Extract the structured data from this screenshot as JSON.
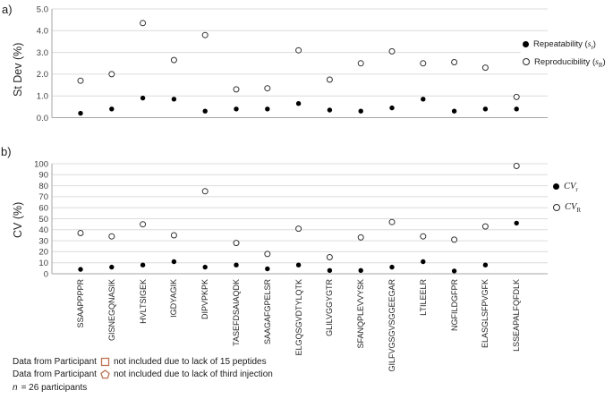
{
  "figure": {
    "panel_a_label": "a)",
    "panel_b_label": "b)"
  },
  "chart_data": [
    {
      "type": "scatter",
      "panel": "a",
      "ylabel": "St Dev (%)",
      "ylim": [
        0,
        5
      ],
      "yticks": [
        0,
        1,
        2,
        3,
        4,
        5
      ],
      "ytick_labels": [
        "0.0",
        "1.0",
        "2.0",
        "3.0",
        "4.0",
        "5.0"
      ],
      "grid": true,
      "legend_position": "right",
      "categories": [
        "SSAAPPPPR",
        "GISNEGQNASIK",
        "HVLTSIGEK",
        "IGDYAGIK",
        "DIPVPKPK",
        "TASEFDSAIAQDK",
        "SAAGAFGPELSR",
        "ELGQSGVDTYLQTK",
        "GLILVGGYGTR",
        "SFANQPLEVVYSK",
        "GILFVGSGVSGGEEGAR",
        "LTILEELR",
        "NGFILDGFPR",
        "ELASGLSFPVGFK",
        "LSSEAPALFQFDLK"
      ],
      "series": [
        {
          "name": "Repeatability (sr)",
          "marker": "filled",
          "values": [
            0.2,
            0.4,
            0.9,
            0.85,
            0.3,
            0.4,
            0.4,
            0.65,
            0.35,
            0.3,
            0.45,
            0.85,
            0.3,
            0.4,
            0.4
          ]
        },
        {
          "name": "Reproducibility (sR)",
          "marker": "open",
          "values": [
            1.7,
            2.0,
            4.35,
            2.65,
            3.8,
            1.3,
            1.35,
            3.1,
            1.75,
            2.5,
            3.05,
            2.5,
            2.55,
            2.3,
            0.95
          ]
        }
      ],
      "legend": [
        {
          "marker": "filled",
          "prefix": "Repeatability (",
          "symbol": "s",
          "subscript": "r",
          "suffix": ")"
        },
        {
          "marker": "open",
          "prefix": "Reproducibility (",
          "symbol": "s",
          "subscript": "R",
          "suffix": ")"
        }
      ]
    },
    {
      "type": "scatter",
      "panel": "b",
      "ylabel": "CV (%)",
      "ylim": [
        0,
        100
      ],
      "yticks": [
        0,
        10,
        20,
        30,
        40,
        50,
        60,
        70,
        80,
        90,
        100
      ],
      "ytick_labels": [
        "0",
        "10",
        "20",
        "30",
        "40",
        "50",
        "60",
        "70",
        "80",
        "90",
        "100"
      ],
      "grid": true,
      "legend_position": "right",
      "categories": [
        "SSAAPPPPR",
        "GISNEGQNASIK",
        "HVLTSIGEK",
        "IGDYAGIK",
        "DIPVPKPK",
        "TASEFDSAIAQDK",
        "SAAGAFGPELSR",
        "ELGQSGVDTYLQTK",
        "GLILVGGYGTR",
        "SFANQPLEVVYSK",
        "GILFVGSGVSGGEEGAR",
        "LTILEELR",
        "NGFILDGFPR",
        "ELASGLSFPVGFK",
        "LSSEAPALFQFDLK"
      ],
      "series": [
        {
          "name": "CVr",
          "marker": "filled",
          "values": [
            4,
            6,
            8,
            11,
            6,
            8,
            4.5,
            8,
            3,
            3,
            6,
            11,
            2.5,
            8,
            46
          ]
        },
        {
          "name": "CVR",
          "marker": "open",
          "values": [
            37,
            34,
            45,
            35,
            75,
            28,
            18,
            41,
            15,
            33,
            47,
            34,
            31,
            43,
            98
          ]
        }
      ],
      "legend": [
        {
          "marker": "filled",
          "prefix": "",
          "symbol": "CV",
          "subscript": "r",
          "suffix": ""
        },
        {
          "marker": "open",
          "prefix": "",
          "symbol": "CV",
          "subscript": "R",
          "suffix": ""
        }
      ]
    }
  ],
  "footnotes": [
    {
      "prefix": "Data from Participant",
      "symbol": "square-outline",
      "text": "not included due to lack of 15 peptides"
    },
    {
      "prefix": "Data from Participant",
      "symbol": "pentagon-outline",
      "text": "not included due to lack of third injection"
    }
  ],
  "footnote_n": {
    "var": "n",
    "text": "= 26 participants"
  },
  "colors": {
    "marker_filled": "#000000",
    "marker_open_stroke": "#333333",
    "gridline": "#DCDCDC",
    "axis_line": "#A6A6A6",
    "tick_label": "#404040",
    "participant_symbol": "#BF7150"
  }
}
